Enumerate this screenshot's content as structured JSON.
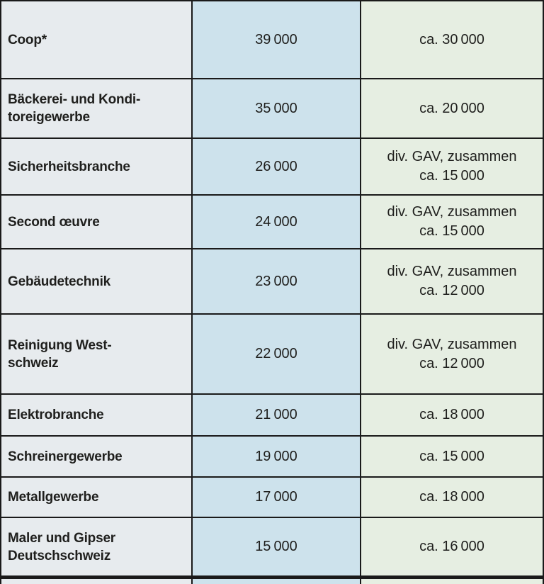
{
  "table": {
    "description_visible": false,
    "rows": [
      {
        "sector": "Coop*",
        "members": "39 000",
        "covered": "ca. 30 000"
      },
      {
        "sector": "Bäckerei- und Kondi-\ntoreigewerbe",
        "members": "35 000",
        "covered": "ca. 20 000"
      },
      {
        "sector": "Sicherheitsbranche",
        "members": "26 000",
        "covered": "div. GAV, zusammen\nca. 15 000"
      },
      {
        "sector": "Second œuvre",
        "members": "24 000",
        "covered": "div. GAV, zusammen\nca. 15 000"
      },
      {
        "sector": "Gebäudetechnik",
        "members": "23 000",
        "covered": "div. GAV, zusammen\nca. 12 000"
      },
      {
        "sector": "Reinigung West-\nschweiz",
        "members": "22 000",
        "covered": "div. GAV, zusammen\nca. 12 000"
      },
      {
        "sector": "Elektrobranche",
        "members": "21 000",
        "covered": "ca. 18 000"
      },
      {
        "sector": "Schreinergewerbe",
        "members": "19 000",
        "covered": "ca. 15 000"
      },
      {
        "sector": "Metallgewerbe",
        "members": "17 000",
        "covered": "ca. 18 000"
      },
      {
        "sector": "Maler und Gipser\nDeutschschweiz",
        "members": "15 000",
        "covered": "ca. 16 000"
      }
    ],
    "palette": {
      "sector_column_bg": "#e7ebee",
      "members_column_bg": "#cde2ec",
      "covered_column_bg": "#e6eee2",
      "grid_line": "#1a1a1a",
      "text": "#1f1f1d"
    }
  }
}
